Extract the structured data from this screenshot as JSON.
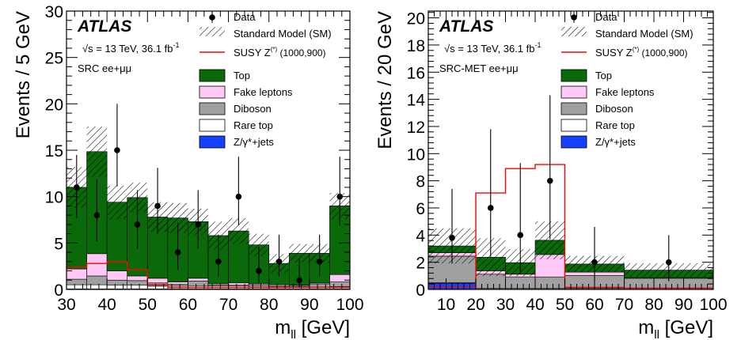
{
  "colors": {
    "top": "#0a6a0a",
    "fake": "#ffc8f5",
    "diboson": "#a0a0a0",
    "raretop": "#ffffff",
    "zjets": "#1540ff",
    "susy": "#ff0000",
    "data": "#000000"
  },
  "legend_labels": {
    "data": "Data",
    "sm": "Standard Model (SM)",
    "susy": "SUSY Z",
    "susy_sup": "(*)",
    "susy_mass": " (1000,900)",
    "top": "Top",
    "fake": "Fake leptons",
    "diboson": "Diboson",
    "raretop": "Rare top",
    "zjets": "Z/γ*+jets"
  },
  "atlas_label": "ATLAS",
  "energy_text": "√s = 13 TeV, 36.1 fb",
  "energy_sup": "-1",
  "chart_data": [
    {
      "type": "bar",
      "name": "left",
      "region_label": "SRC ee+μμ",
      "ylabel": "Events / 5 GeV",
      "xlabel": "m",
      "xlabel_sub": "ll",
      "xlabel_unit": " [GeV]",
      "xlim": [
        30,
        100
      ],
      "ylim": [
        0,
        30
      ],
      "xticks": [
        30,
        40,
        50,
        60,
        70,
        80,
        90,
        100
      ],
      "yticks": [
        0,
        5,
        10,
        15,
        20,
        25,
        30
      ],
      "bin_edges": [
        30,
        35,
        40,
        45,
        50,
        55,
        60,
        65,
        70,
        75,
        80,
        85,
        90,
        95,
        100
      ],
      "stack": {
        "zjets": [
          0.05,
          0.05,
          0.05,
          0.05,
          0.05,
          0.05,
          0.05,
          0.05,
          0.05,
          0.05,
          0.05,
          0.05,
          0.05,
          0.05
        ],
        "raretop": [
          0.45,
          0.45,
          0.4,
          0.4,
          0.3,
          0.3,
          0.3,
          0.3,
          0.3,
          0.2,
          0.2,
          0.2,
          0.2,
          0.25
        ],
        "diboson": [
          0.6,
          0.95,
          0.55,
          0.5,
          0.35,
          0.2,
          0.55,
          0.1,
          0.1,
          0.2,
          0.1,
          0.1,
          0.35,
          0.5
        ],
        "fake": [
          1.1,
          2.4,
          1.0,
          0.5,
          0.5,
          0.25,
          0.3,
          0.15,
          0.25,
          0.15,
          0.15,
          0.1,
          0.1,
          0.8
        ],
        "top": [
          8.8,
          11.0,
          7.4,
          8.45,
          6.6,
          6.9,
          6.1,
          5.2,
          5.6,
          4.2,
          2.3,
          3.45,
          3.2,
          7.4
        ]
      },
      "sm_unc": [
        2.2,
        2.7,
        1.8,
        1.6,
        1.6,
        1.6,
        1.4,
        1.5,
        1.4,
        1.2,
        1.0,
        1.0,
        1.0,
        1.4
      ],
      "susy": [
        2.4,
        2.8,
        3.0,
        2.1,
        0.5,
        0.2,
        0.2,
        0.2,
        0.2,
        0.2,
        0.2,
        0.2,
        0.2,
        0.2
      ],
      "data_points": [
        {
          "x": 32.5,
          "y": 11,
          "up": 3.5,
          "dn": 3.3
        },
        {
          "x": 37.5,
          "y": 8,
          "up": 3.9,
          "dn": 2.8
        },
        {
          "x": 42.5,
          "y": 15,
          "up": 5.0,
          "dn": 3.9
        },
        {
          "x": 47.5,
          "y": 7,
          "up": 3.7,
          "dn": 2.6
        },
        {
          "x": 52.5,
          "y": 9,
          "up": 4.1,
          "dn": 3.0
        },
        {
          "x": 57.5,
          "y": 4,
          "up": 3.2,
          "dn": 1.9
        },
        {
          "x": 62.5,
          "y": 7,
          "up": 3.7,
          "dn": 2.6
        },
        {
          "x": 67.5,
          "y": 3,
          "up": 2.9,
          "dn": 1.6
        },
        {
          "x": 72.5,
          "y": 10,
          "up": 4.3,
          "dn": 3.1
        },
        {
          "x": 77.5,
          "y": 2,
          "up": 2.6,
          "dn": 1.3
        },
        {
          "x": 82.5,
          "y": 3,
          "up": 2.9,
          "dn": 1.6
        },
        {
          "x": 87.5,
          "y": 1,
          "up": 2.3,
          "dn": 0.8
        },
        {
          "x": 92.5,
          "y": 3,
          "up": 2.9,
          "dn": 1.6
        },
        {
          "x": 97.5,
          "y": 10,
          "up": 4.3,
          "dn": 3.1
        }
      ]
    },
    {
      "type": "bar",
      "name": "right",
      "region_label": "SRC-MET ee+μμ",
      "ylabel": "Events / 20 GeV",
      "xlabel": "m",
      "xlabel_sub": "ll",
      "xlabel_unit": " [GeV]",
      "xlim": [
        4,
        100
      ],
      "ylim": [
        0,
        20.5
      ],
      "xticks": [
        10,
        20,
        30,
        40,
        50,
        60,
        70,
        80,
        90,
        100
      ],
      "yticks": [
        0,
        2,
        4,
        6,
        8,
        10,
        12,
        14,
        16,
        18,
        20
      ],
      "bin_edges": [
        4,
        20,
        30,
        40,
        50,
        70,
        100
      ],
      "stack": {
        "zjets": [
          0.45,
          0.02,
          0.02,
          0.02,
          0.02,
          0.02
        ],
        "raretop": [
          0.05,
          0.05,
          0.05,
          0.05,
          0.05,
          0.05
        ],
        "diboson": [
          1.95,
          1.05,
          0.85,
          0.85,
          0.95,
          0.75
        ],
        "fake": [
          0.25,
          0.25,
          0.2,
          1.65,
          0.25,
          0.05
        ],
        "top": [
          0.5,
          1.0,
          0.85,
          1.05,
          0.6,
          0.55
        ]
      },
      "sm_unc": [
        1.3,
        1.4,
        1.0,
        1.4,
        0.6,
        0.5
      ],
      "susy": [
        0.2,
        7.1,
        8.9,
        9.2,
        0.15,
        0.1
      ],
      "data_points": [
        {
          "x": 12,
          "y": 3.8,
          "up": 3.6,
          "dn": 1.9
        },
        {
          "x": 25,
          "y": 6,
          "up": 5.8,
          "dn": 3.6
        },
        {
          "x": 35,
          "y": 4,
          "up": 5.3,
          "dn": 2.9
        },
        {
          "x": 45,
          "y": 8,
          "up": 6.3,
          "dn": 4.3
        },
        {
          "x": 60,
          "y": 2,
          "up": 2.6,
          "dn": 1.3
        },
        {
          "x": 85,
          "y": 2,
          "up": 2.0,
          "dn": 1.4
        }
      ]
    }
  ]
}
